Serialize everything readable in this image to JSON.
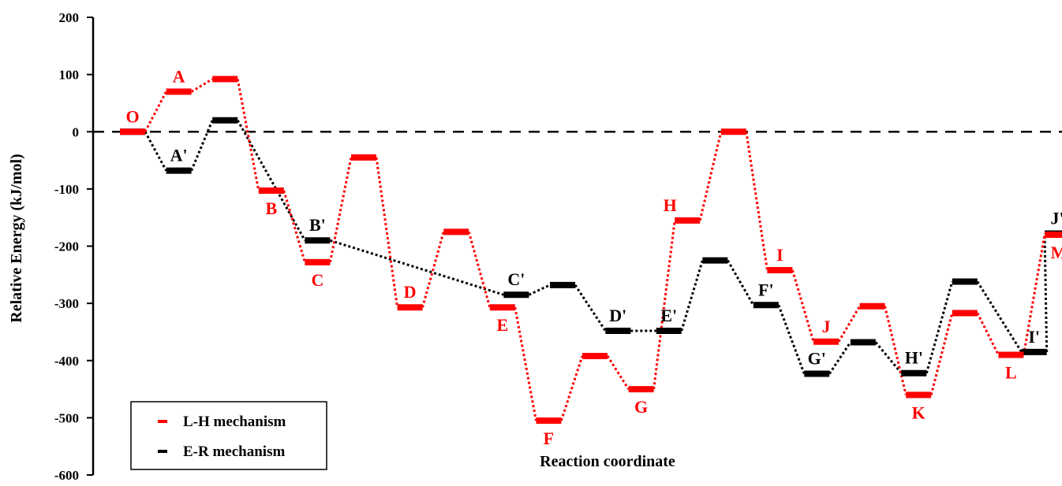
{
  "chart_data": {
    "type": "line",
    "ylabel": "Relative Energy (kJ/mol)",
    "xlabel": "Reaction coordinate",
    "ylim": [
      -600,
      200
    ],
    "yticks": [
      200,
      100,
      0,
      -100,
      -200,
      -300,
      -400,
      -500,
      -600
    ],
    "reference_line": 0,
    "grid": false,
    "legend_position": "bottom-left",
    "colors": {
      "lh": "#ff0000",
      "er": "#000000"
    },
    "series": [
      {
        "name": "L-H mechanism",
        "color": "#ff0000",
        "levels": [
          {
            "x": 1,
            "y": 0,
            "label": "O"
          },
          {
            "x": 2,
            "y": 70,
            "label": "A"
          },
          {
            "x": 3,
            "y": 92,
            "label": ""
          },
          {
            "x": 4,
            "y": -103,
            "label": "B"
          },
          {
            "x": 5,
            "y": -228,
            "label": "C"
          },
          {
            "x": 6,
            "y": -45,
            "label": ""
          },
          {
            "x": 7,
            "y": -307,
            "label": "D"
          },
          {
            "x": 8,
            "y": -175,
            "label": ""
          },
          {
            "x": 9,
            "y": -307,
            "label": "E"
          },
          {
            "x": 10,
            "y": -505,
            "label": "F"
          },
          {
            "x": 11,
            "y": -392,
            "label": ""
          },
          {
            "x": 12,
            "y": -450,
            "label": "G"
          },
          {
            "x": 13,
            "y": -155,
            "label": "H"
          },
          {
            "x": 14,
            "y": 0,
            "label": ""
          },
          {
            "x": 15,
            "y": -242,
            "label": "I"
          },
          {
            "x": 16,
            "y": -367,
            "label": "J"
          },
          {
            "x": 17,
            "y": -305,
            "label": ""
          },
          {
            "x": 18,
            "y": -460,
            "label": "K"
          },
          {
            "x": 19,
            "y": -317,
            "label": ""
          },
          {
            "x": 20,
            "y": -390,
            "label": "L"
          },
          {
            "x": 21,
            "y": -180,
            "label": "M"
          }
        ]
      },
      {
        "name": "E-R mechanism",
        "color": "#000000",
        "levels": [
          {
            "x": 1,
            "y": 0,
            "label": ""
          },
          {
            "x": 2,
            "y": -68,
            "label": "A'"
          },
          {
            "x": 3,
            "y": 20,
            "label": ""
          },
          {
            "x": 5,
            "y": -190,
            "label": "B'"
          },
          {
            "x": 9.3,
            "y": -285,
            "label": "C'"
          },
          {
            "x": 10.3,
            "y": -268,
            "label": ""
          },
          {
            "x": 11.5,
            "y": -348,
            "label": "D'"
          },
          {
            "x": 12.6,
            "y": -348,
            "label": "E'"
          },
          {
            "x": 13.6,
            "y": -225,
            "label": ""
          },
          {
            "x": 14.7,
            "y": -303,
            "label": "F'"
          },
          {
            "x": 15.8,
            "y": -423,
            "label": "G'"
          },
          {
            "x": 16.8,
            "y": -368,
            "label": ""
          },
          {
            "x": 17.9,
            "y": -422,
            "label": "H'"
          },
          {
            "x": 19,
            "y": -262,
            "label": ""
          },
          {
            "x": 20.5,
            "y": -385,
            "label": "I'"
          },
          {
            "x": 21,
            "y": -178,
            "label": "J'"
          }
        ]
      }
    ]
  }
}
